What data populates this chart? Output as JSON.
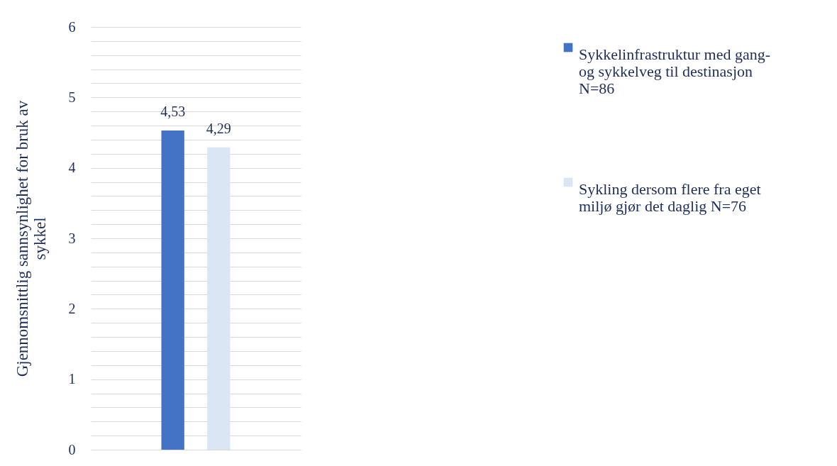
{
  "chart_data": {
    "type": "bar",
    "ylabel": "Gjennomsnittlig sannsynlighet for bruk av sykkel",
    "categories": [
      null
    ],
    "series": [
      {
        "name": "Sykkelinfrastruktur med gang-og sykkelveg til destinasjon N=86",
        "color": "#4472c4",
        "values": [
          4.53
        ],
        "value_labels": [
          "4,53"
        ]
      },
      {
        "name": "Sykling dersom flere fra eget miljø gjør det daglig N=76",
        "color": "#dae6f4",
        "values": [
          4.29
        ],
        "value_labels": [
          "4,29"
        ]
      }
    ],
    "ylim": [
      0,
      6
    ],
    "yticks": [
      0,
      {
        "value": 0.2,
        "label": null
      },
      {
        "value": 0.4,
        "label": null
      },
      {
        "value": 0.6,
        "label": null
      },
      {
        "value": 0.8,
        "label": null
      },
      1,
      {
        "value": 1.2,
        "label": null
      },
      {
        "value": 1.4,
        "label": null
      },
      {
        "value": 1.6,
        "label": null
      },
      {
        "value": 1.8,
        "label": null
      },
      2,
      {
        "value": 2.2,
        "label": null
      },
      {
        "value": 2.4,
        "label": null
      },
      {
        "value": 2.6,
        "label": null
      },
      {
        "value": 2.8,
        "label": null
      },
      3,
      {
        "value": 3.2,
        "label": null
      },
      {
        "value": 3.4,
        "label": null
      },
      {
        "value": 3.6,
        "label": null
      },
      {
        "value": 3.8,
        "label": null
      },
      4,
      {
        "value": 4.2,
        "label": null
      },
      {
        "value": 4.4,
        "label": null
      },
      {
        "value": 4.6,
        "label": null
      },
      {
        "value": 4.8,
        "label": null
      },
      5,
      {
        "value": 5.2,
        "label": null
      },
      {
        "value": 5.4,
        "label": null
      },
      {
        "value": 5.6,
        "label": null
      },
      {
        "value": 5.8,
        "label": null
      },
      6
    ],
    "grid": "y",
    "legend": "top right"
  }
}
